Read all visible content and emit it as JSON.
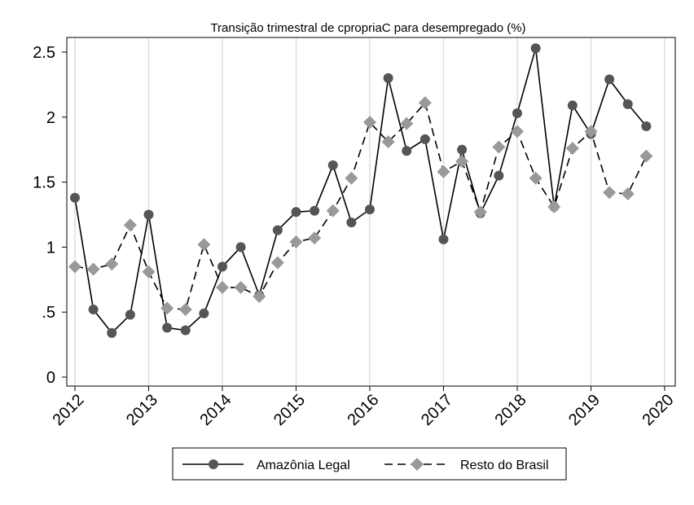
{
  "chart_data": {
    "type": "line",
    "title": "Transição trimestral de cpropriaC para desempregado (%)",
    "xlabel": "",
    "ylabel": "",
    "x_ticks": [
      "2012",
      "2013",
      "2014",
      "2015",
      "2016",
      "2017",
      "2018",
      "2019",
      "2020"
    ],
    "y_ticks": [
      "0",
      ".5",
      "1",
      "1.5",
      "2",
      "2.5"
    ],
    "xlim": [
      2012,
      2020
    ],
    "ylim": [
      0,
      2.5
    ],
    "grid": "vertical",
    "legend_position": "bottom",
    "x": [
      2012.0,
      2012.25,
      2012.5,
      2012.75,
      2013.0,
      2013.25,
      2013.5,
      2013.75,
      2014.0,
      2014.25,
      2014.5,
      2014.75,
      2015.0,
      2015.25,
      2015.5,
      2015.75,
      2016.0,
      2016.25,
      2016.5,
      2016.75,
      2017.0,
      2017.25,
      2017.5,
      2017.75,
      2018.0,
      2018.25,
      2018.5,
      2018.75,
      2019.0,
      2019.25,
      2019.5,
      2019.75
    ],
    "series": [
      {
        "name": "Amazônia Legal",
        "color": "#555555",
        "marker": "circle",
        "line": "solid",
        "values": [
          1.38,
          0.52,
          0.34,
          0.48,
          1.25,
          0.38,
          0.36,
          0.49,
          0.85,
          1.0,
          0.63,
          1.13,
          1.27,
          1.28,
          1.63,
          1.19,
          1.29,
          2.3,
          1.74,
          1.83,
          1.06,
          1.75,
          1.26,
          1.55,
          2.03,
          2.53,
          1.31,
          2.09,
          1.87,
          2.29,
          2.1,
          1.93
        ]
      },
      {
        "name": "Resto do Brasil",
        "color": "#999999",
        "marker": "diamond",
        "line": "dashed",
        "values": [
          0.85,
          0.83,
          0.87,
          1.17,
          0.81,
          0.53,
          0.52,
          1.02,
          0.69,
          0.69,
          0.62,
          0.88,
          1.04,
          1.07,
          1.28,
          1.53,
          1.96,
          1.81,
          1.95,
          2.11,
          1.58,
          1.66,
          1.27,
          1.77,
          1.89,
          1.53,
          1.31,
          1.76,
          1.89,
          1.42,
          1.41,
          1.7
        ]
      }
    ]
  }
}
